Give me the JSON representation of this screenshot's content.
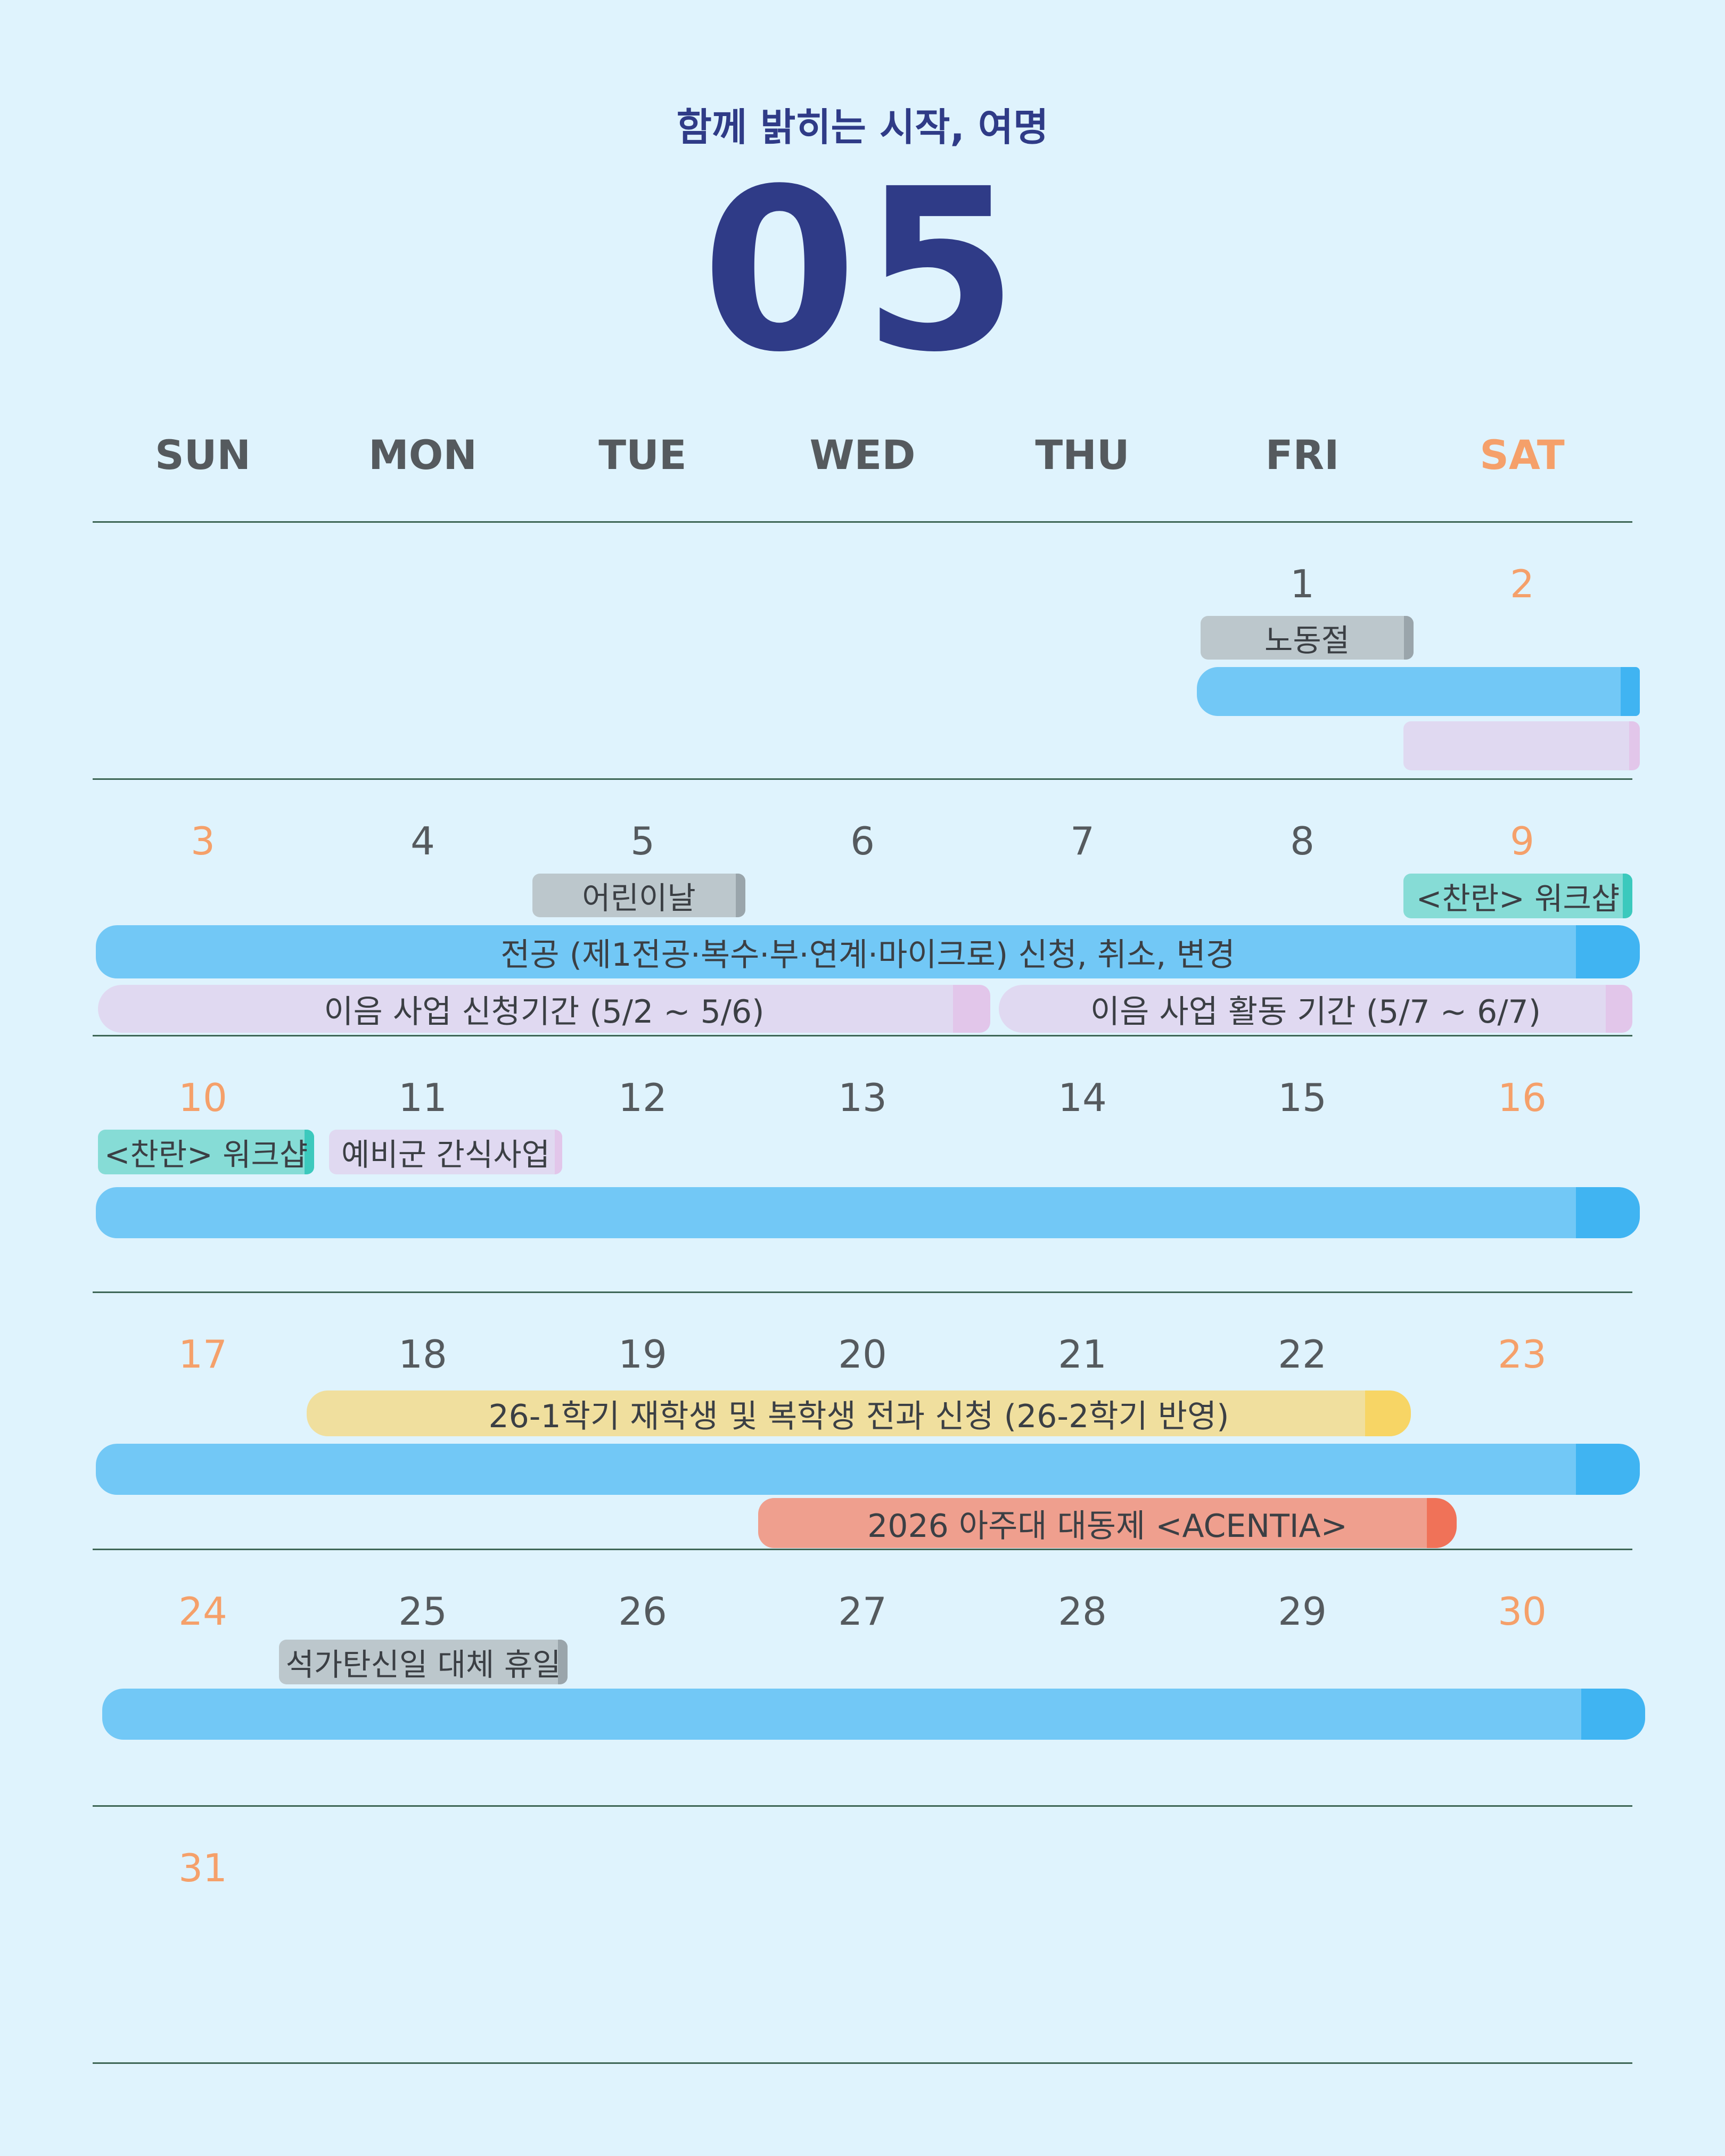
{
  "header": {
    "subtitle": "함께 밝히는 시작, 여명",
    "month": "05"
  },
  "weekdays": [
    "SUN",
    "MON",
    "TUE",
    "WED",
    "THU",
    "FRI",
    "SAT"
  ],
  "weeks": [
    [
      "",
      "",
      "",
      "",
      "",
      "1",
      "2"
    ],
    [
      "3",
      "4",
      "5",
      "6",
      "7",
      "8",
      "9"
    ],
    [
      "10",
      "11",
      "12",
      "13",
      "14",
      "15",
      "16"
    ],
    [
      "17",
      "18",
      "19",
      "20",
      "21",
      "22",
      "23"
    ],
    [
      "24",
      "25",
      "26",
      "27",
      "28",
      "29",
      "30"
    ],
    [
      "31",
      "",
      "",
      "",
      "",
      "",
      ""
    ]
  ],
  "events": {
    "labor_day": "노동절",
    "childrens_day": "어린이날",
    "workshop": "<찬란> 워크샵",
    "major_application": "전공 (제1전공·복수·부·연계·마이크로) 신청, 취소, 변경",
    "ieum_apply": "이음 사업 신청기간 (5/2 ~ 5/6)",
    "ieum_activity": "이음 사업 활동 기간 (5/7 ~ 6/7)",
    "reserve_snack": "예비군 간식사업",
    "transfer_application": "26-1학기 재학생 및 복학생 전과 신청 (26-2학기 반영)",
    "festival": "2026 아주대 대동제 <ACENTIA>",
    "buddha_holiday": "석가탄신일 대체 휴일"
  },
  "colors": {
    "background": "#dff3fd",
    "title": "#2f3b87",
    "weekend": "#f5a06a",
    "text": "#555a5e"
  }
}
